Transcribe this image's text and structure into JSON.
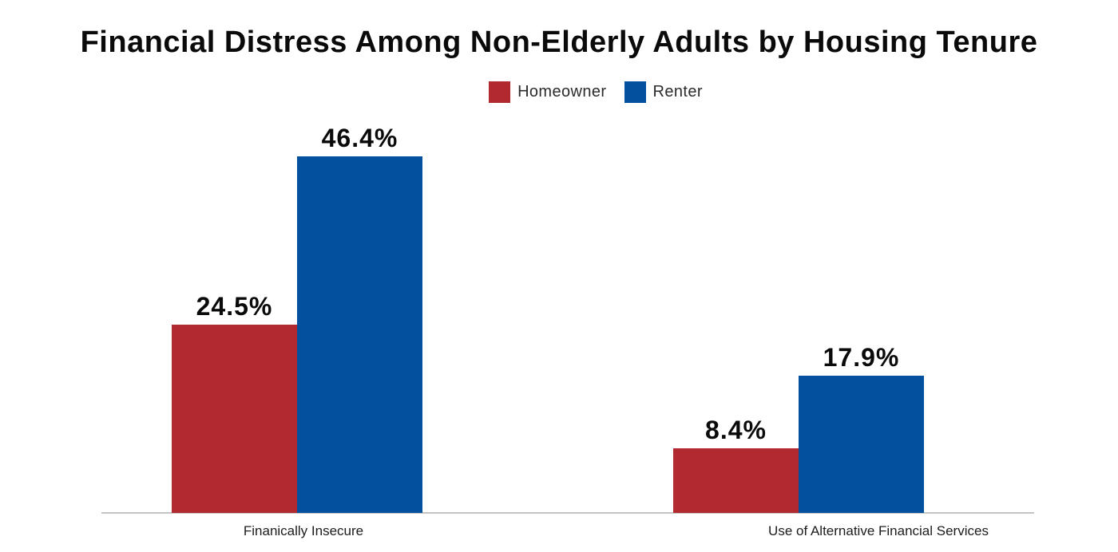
{
  "chart_data": {
    "type": "bar",
    "title": "Financial Distress Among Non-Elderly Adults by Housing Tenure",
    "categories": [
      "Finanically Insecure",
      "Use of Alternative Financial Services"
    ],
    "series": [
      {
        "name": "Homeowner",
        "color": "#b22a2f",
        "values": [
          24.5,
          8.4
        ],
        "value_labels": [
          "24.5%",
          "8.4%"
        ]
      },
      {
        "name": "Renter",
        "color": "#03509f",
        "values": [
          46.4,
          17.9
        ],
        "value_labels": [
          "46.4%",
          "17.9%"
        ]
      }
    ],
    "xlabel": "",
    "ylabel": "",
    "ylim": [
      0,
      48
    ],
    "grid": false,
    "legend_position": "top-center",
    "axis_line_color": "#c4c4c4",
    "background_color": "#ffffff",
    "text_color": "#0a0a0a"
  }
}
